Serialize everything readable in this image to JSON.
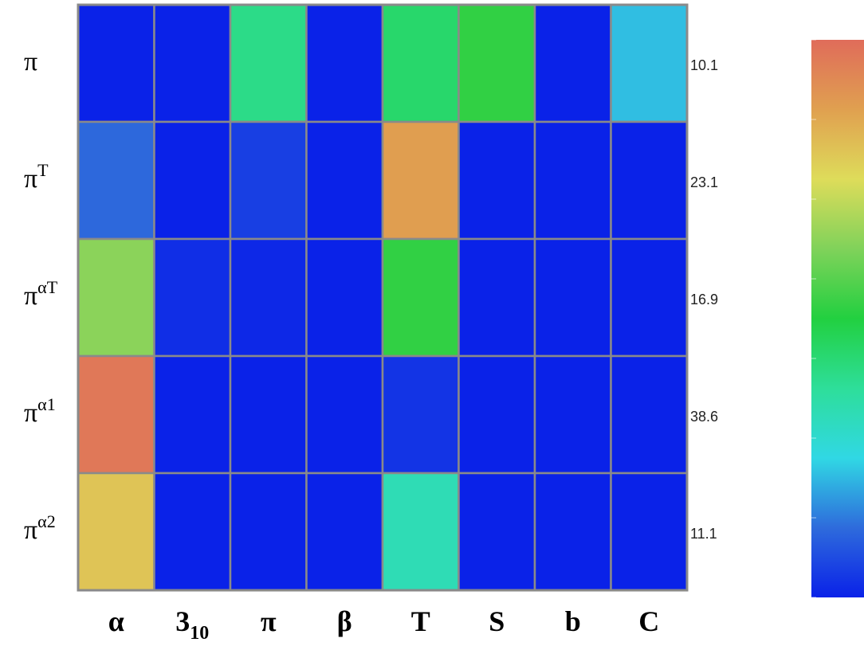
{
  "chart_data": {
    "type": "heatmap",
    "rows": [
      {
        "base": "π",
        "sup": ""
      },
      {
        "base": "π",
        "sup": "T"
      },
      {
        "base": "π",
        "sup": "αT"
      },
      {
        "base": "π",
        "sup": "α1"
      },
      {
        "base": "π",
        "sup": "α2"
      }
    ],
    "columns": [
      {
        "base": "α",
        "sub": ""
      },
      {
        "base": "3",
        "sub": "10"
      },
      {
        "base": "π",
        "sub": ""
      },
      {
        "base": "β",
        "sub": ""
      },
      {
        "base": "T",
        "sub": ""
      },
      {
        "base": "S",
        "sub": ""
      },
      {
        "base": "b",
        "sub": ""
      },
      {
        "base": "C",
        "sub": ""
      }
    ],
    "row_totals": [
      "10.1",
      "23.1",
      "16.9",
      "38.6",
      "11.1"
    ],
    "values": [
      [
        0.0,
        0.0,
        0.4,
        0.0,
        0.44,
        0.52,
        0.0,
        0.22
      ],
      [
        0.12,
        0.0,
        0.05,
        0.0,
        0.88,
        0.0,
        0.0,
        0.0
      ],
      [
        0.64,
        0.02,
        0.01,
        0.0,
        0.52,
        0.0,
        0.0,
        0.0
      ],
      [
        0.97,
        0.0,
        0.0,
        0.0,
        0.03,
        0.0,
        0.0,
        0.0
      ],
      [
        0.8,
        0.0,
        0.0,
        0.0,
        0.33,
        0.0,
        0.0,
        0.0
      ]
    ],
    "value_range": [
      0,
      1
    ],
    "colormap": [
      "#0a22e8",
      "#2e6bdc",
      "#30d8e4",
      "#2ede9a",
      "#22d040",
      "#80d25a",
      "#dedc5a",
      "#e0a050",
      "#e06c5a"
    ],
    "grid_color": "#8a8a8a",
    "legend": "colorbar-right"
  }
}
